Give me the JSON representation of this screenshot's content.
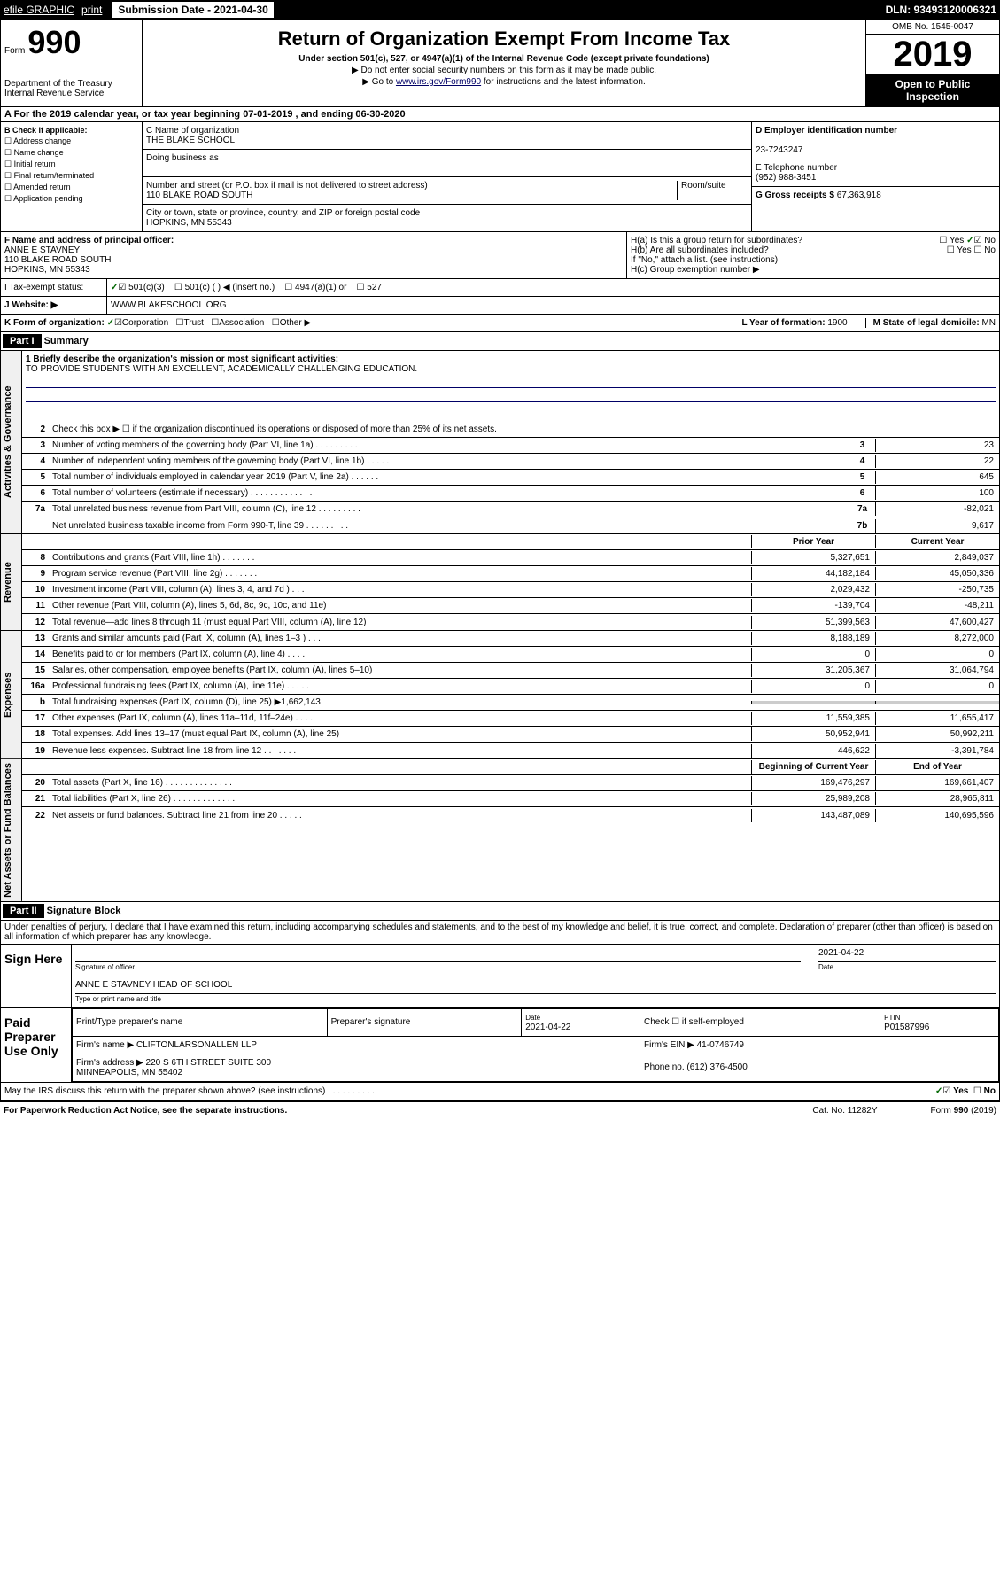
{
  "topbar": {
    "efile": "efile GRAPHIC",
    "print": "print",
    "subdate_label": "Submission Date - 2021-04-30",
    "dln": "DLN: 93493120006321"
  },
  "header": {
    "form_label": "Form",
    "form_num": "990",
    "dept": "Department of the Treasury\nInternal Revenue Service",
    "title": "Return of Organization Exempt From Income Tax",
    "subtitle": "Under section 501(c), 527, or 4947(a)(1) of the Internal Revenue Code (except private foundations)",
    "note1": "▶ Do not enter social security numbers on this form as it may be made public.",
    "note2_pre": "▶ Go to ",
    "note2_link": "www.irs.gov/Form990",
    "note2_post": " for instructions and the latest information.",
    "omb": "OMB No. 1545-0047",
    "year": "2019",
    "open": "Open to Public Inspection"
  },
  "section_a": "A For the 2019 calendar year, or tax year beginning 07-01-2019   , and ending 06-30-2020",
  "col_b": {
    "label": "B Check if applicable:",
    "opts": [
      "Address change",
      "Name change",
      "Initial return",
      "Final return/terminated",
      "Amended return",
      "Application pending"
    ]
  },
  "col_c": {
    "name_label": "C Name of organization",
    "name": "THE BLAKE SCHOOL",
    "dba_label": "Doing business as",
    "addr_label": "Number and street (or P.O. box if mail is not delivered to street address)",
    "room_label": "Room/suite",
    "addr": "110 BLAKE ROAD SOUTH",
    "city_label": "City or town, state or province, country, and ZIP or foreign postal code",
    "city": "HOPKINS, MN  55343"
  },
  "col_d": {
    "ein_label": "D Employer identification number",
    "ein": "23-7243247",
    "tel_label": "E Telephone number",
    "tel": "(952) 988-3451",
    "gross_label": "G Gross receipts $",
    "gross": "67,363,918"
  },
  "fgh": {
    "f_label": "F  Name and address of principal officer:",
    "f_name": "ANNE E STAVNEY",
    "f_addr": "110 BLAKE ROAD SOUTH\nHOPKINS, MN  55343",
    "ha": "H(a)  Is this a group return for subordinates?",
    "hb": "H(b)  Are all subordinates included?",
    "hb_note": "If \"No,\" attach a list. (see instructions)",
    "hc": "H(c)  Group exemption number ▶",
    "yes": "Yes",
    "no": "No"
  },
  "tax_status": {
    "label": "I  Tax-exempt status:",
    "opt1": "501(c)(3)",
    "opt2": "501(c) (   ) ◀ (insert no.)",
    "opt3": "4947(a)(1) or",
    "opt4": "527"
  },
  "website": {
    "label": "J  Website: ▶",
    "val": "WWW.BLAKESCHOOL.ORG"
  },
  "row_k": {
    "label": "K Form of organization:",
    "opts": [
      "Corporation",
      "Trust",
      "Association",
      "Other ▶"
    ],
    "l_label": "L Year of formation:",
    "l_val": "1900",
    "m_label": "M State of legal domicile:",
    "m_val": "MN"
  },
  "part1": {
    "label": "Part I",
    "title": "Summary",
    "mission_label": "1  Briefly describe the organization's mission or most significant activities:",
    "mission": "TO PROVIDE STUDENTS WITH AN EXCELLENT, ACADEMICALLY CHALLENGING EDUCATION.",
    "line2": "Check this box ▶ ☐  if the organization discontinued its operations or disposed of more than 25% of its net assets.",
    "governance_label": "Activities & Governance",
    "revenue_label": "Revenue",
    "expenses_label": "Expenses",
    "netassets_label": "Net Assets or Fund Balances",
    "prior_year": "Prior Year",
    "current_year": "Current Year",
    "beg_year": "Beginning of Current Year",
    "end_year": "End of Year"
  },
  "lines_gov": [
    {
      "n": "3",
      "d": "Number of voting members of the governing body (Part VI, line 1a)  .    .    .    .    .    .    .    .    .",
      "b": "3",
      "v": "23"
    },
    {
      "n": "4",
      "d": "Number of independent voting members of the governing body (Part VI, line 1b)   .    .    .    .    .",
      "b": "4",
      "v": "22"
    },
    {
      "n": "5",
      "d": "Total number of individuals employed in calendar year 2019 (Part V, line 2a)   .    .    .    .    .    .",
      "b": "5",
      "v": "645"
    },
    {
      "n": "6",
      "d": "Total number of volunteers (estimate if necessary)   .    .    .    .    .    .    .    .    .    .    .    .    .",
      "b": "6",
      "v": "100"
    },
    {
      "n": "7a",
      "d": "Total unrelated business revenue from Part VIII, column (C), line 12  .    .    .    .    .    .    .    .    .",
      "b": "7a",
      "v": "-82,021"
    },
    {
      "n": "",
      "d": "Net unrelated business taxable income from Form 990-T, line 39   .    .    .    .    .    .    .    .    .",
      "b": "7b",
      "v": "9,617"
    }
  ],
  "lines_rev": [
    {
      "n": "8",
      "d": "Contributions and grants (Part VIII, line 1h)   .    .    .    .    .    .    .",
      "v1": "5,327,651",
      "v2": "2,849,037"
    },
    {
      "n": "9",
      "d": "Program service revenue (Part VIII, line 2g)   .    .    .    .    .    .    .",
      "v1": "44,182,184",
      "v2": "45,050,336"
    },
    {
      "n": "10",
      "d": "Investment income (Part VIII, column (A), lines 3, 4, and 7d )  .    .    .",
      "v1": "2,029,432",
      "v2": "-250,735"
    },
    {
      "n": "11",
      "d": "Other revenue (Part VIII, column (A), lines 5, 6d, 8c, 9c, 10c, and 11e)",
      "v1": "-139,704",
      "v2": "-48,211"
    },
    {
      "n": "12",
      "d": "Total revenue—add lines 8 through 11 (must equal Part VIII, column (A), line 12)",
      "v1": "51,399,563",
      "v2": "47,600,427"
    }
  ],
  "lines_exp": [
    {
      "n": "13",
      "d": "Grants and similar amounts paid (Part IX, column (A), lines 1–3 )   .    .    .",
      "v1": "8,188,189",
      "v2": "8,272,000"
    },
    {
      "n": "14",
      "d": "Benefits paid to or for members (Part IX, column (A), line 4)   .    .    .    .",
      "v1": "0",
      "v2": "0"
    },
    {
      "n": "15",
      "d": "Salaries, other compensation, employee benefits (Part IX, column (A), lines 5–10)",
      "v1": "31,205,367",
      "v2": "31,064,794"
    },
    {
      "n": "16a",
      "d": "Professional fundraising fees (Part IX, column (A), line 11e)   .    .    .    .    .",
      "v1": "0",
      "v2": "0"
    },
    {
      "n": "b",
      "d": "Total fundraising expenses (Part IX, column (D), line 25) ▶1,662,143",
      "v1": "",
      "v2": "",
      "shaded": true
    },
    {
      "n": "17",
      "d": "Other expenses (Part IX, column (A), lines 11a–11d, 11f–24e)  .    .    .    .",
      "v1": "11,559,385",
      "v2": "11,655,417"
    },
    {
      "n": "18",
      "d": "Total expenses. Add lines 13–17 (must equal Part IX, column (A), line 25)",
      "v1": "50,952,941",
      "v2": "50,992,211"
    },
    {
      "n": "19",
      "d": "Revenue less expenses. Subtract line 18 from line 12   .    .    .    .    .    .    .",
      "v1": "446,622",
      "v2": "-3,391,784"
    }
  ],
  "lines_net": [
    {
      "n": "20",
      "d": "Total assets (Part X, line 16)   .    .    .    .    .    .    .    .    .    .    .    .    .    .",
      "v1": "169,476,297",
      "v2": "169,661,407"
    },
    {
      "n": "21",
      "d": "Total liabilities (Part X, line 26)  .    .    .    .    .    .    .    .    .    .    .    .    .",
      "v1": "25,989,208",
      "v2": "28,965,811"
    },
    {
      "n": "22",
      "d": "Net assets or fund balances. Subtract line 21 from line 20   .    .    .    .    .",
      "v1": "143,487,089",
      "v2": "140,695,596"
    }
  ],
  "part2": {
    "label": "Part II",
    "title": "Signature Block",
    "decl": "Under penalties of perjury, I declare that I have examined this return, including accompanying schedules and statements, and to the best of my knowledge and belief, it is true, correct, and complete. Declaration of preparer (other than officer) is based on all information of which preparer has any knowledge.",
    "sign_here": "Sign Here",
    "sig_officer": "Signature of officer",
    "sig_date": "2021-04-22",
    "date_label": "Date",
    "officer_name": "ANNE E STAVNEY HEAD OF SCHOOL",
    "type_label": "Type or print name and title",
    "paid_prep": "Paid Preparer Use Only",
    "prep_name_label": "Print/Type preparer's name",
    "prep_sig_label": "Preparer's signature",
    "prep_date": "2021-04-22",
    "check_self": "Check ☐  if self-employed",
    "ptin_label": "PTIN",
    "ptin": "P01587996",
    "firm_name_label": "Firm's name    ▶",
    "firm_name": "CLIFTONLARSONALLEN LLP",
    "firm_ein_label": "Firm's EIN ▶",
    "firm_ein": "41-0746749",
    "firm_addr_label": "Firm's address ▶",
    "firm_addr": "220 S 6TH STREET SUITE 300\nMINNEAPOLIS, MN  55402",
    "phone_label": "Phone no.",
    "phone": "(612) 376-4500",
    "discuss": "May the IRS discuss this return with the preparer shown above? (see instructions)   .    .    .    .    .    .    .    .    .    .",
    "yes": "Yes",
    "no": "No"
  },
  "footer": {
    "left": "For Paperwork Reduction Act Notice, see the separate instructions.",
    "mid": "Cat. No. 11282Y",
    "right": "Form 990 (2019)"
  }
}
